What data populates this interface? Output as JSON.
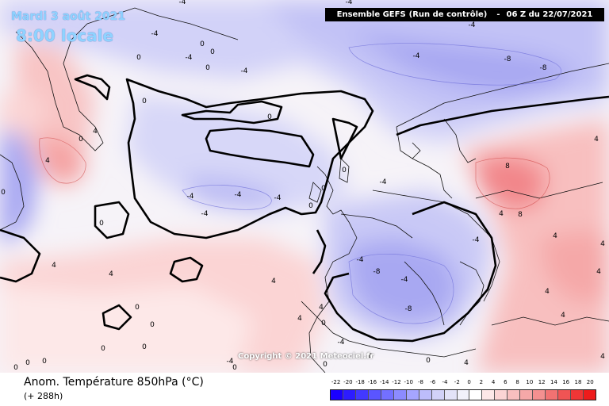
{
  "header": {
    "date": "Mardi 3 août 2021",
    "local_time": "8:00 locale"
  },
  "run_info": {
    "model": "Ensemble GEFS",
    "description": "(Run de contrôle)",
    "run_time": "06 Z du 22/07/2021"
  },
  "copyright": "Copyright © 2021 Meteociel.fr",
  "footer": {
    "title": "Anom. Température 850hPa (°C)",
    "forecast_hour": "(+ 288h)"
  },
  "legend": {
    "labels": [
      "-22",
      "-20",
      "-18",
      "-16",
      "-14",
      "-12",
      "-10",
      "-8",
      "-6",
      "-4",
      "-2",
      "0",
      "2",
      "4",
      "6",
      "8",
      "10",
      "12",
      "14",
      "16",
      "18",
      "20"
    ],
    "colors": [
      "#1a00ff",
      "#2d1cff",
      "#4239ff",
      "#5a55ff",
      "#7370ff",
      "#8c8bff",
      "#a5a5ff",
      "#bdbdfb",
      "#d2d2f8",
      "#e3e3f8",
      "#f2f2fb",
      "#ffffff",
      "#fde8e8",
      "#fbd4d4",
      "#f8bfbf",
      "#f5a8a8",
      "#f49090",
      "#f27272",
      "#f05454",
      "#ef3636",
      "#ee1c1c"
    ]
  },
  "map_labels": [
    {
      "text": "-4"
    },
    {
      "text": "-4"
    },
    {
      "text": "0"
    },
    {
      "text": "0"
    },
    {
      "text": "-4"
    },
    {
      "text": "0"
    },
    {
      "text": "-4"
    },
    {
      "text": "-4"
    },
    {
      "text": "-8"
    },
    {
      "text": "-8"
    },
    {
      "text": "-4"
    },
    {
      "text": "-4"
    },
    {
      "text": "0"
    },
    {
      "text": "4"
    },
    {
      "text": "0"
    },
    {
      "text": "4"
    },
    {
      "text": "-4"
    },
    {
      "text": "-4"
    },
    {
      "text": "-4"
    },
    {
      "text": "-4"
    },
    {
      "text": "0"
    },
    {
      "text": "0"
    },
    {
      "text": "0"
    },
    {
      "text": "0"
    },
    {
      "text": "-4"
    },
    {
      "text": "0"
    },
    {
      "text": "4"
    },
    {
      "text": "0"
    },
    {
      "text": "0"
    },
    {
      "text": "-4"
    },
    {
      "text": "4"
    },
    {
      "text": "8"
    },
    {
      "text": "8"
    },
    {
      "text": "4"
    },
    {
      "text": "4"
    },
    {
      "text": "4"
    },
    {
      "text": "0"
    },
    {
      "text": "0"
    },
    {
      "text": "0"
    },
    {
      "text": "4"
    },
    {
      "text": "-8"
    },
    {
      "text": "-4"
    },
    {
      "text": "-8"
    },
    {
      "text": "-4"
    },
    {
      "text": "-4"
    },
    {
      "text": "0"
    },
    {
      "text": "4"
    },
    {
      "text": "4"
    },
    {
      "text": "0"
    },
    {
      "text": "4"
    },
    {
      "text": "0"
    },
    {
      "text": "4"
    },
    {
      "text": "0"
    },
    {
      "text": "0"
    },
    {
      "text": "0"
    },
    {
      "text": "0"
    },
    {
      "text": "0"
    },
    {
      "text": "-4"
    },
    {
      "text": "4"
    },
    {
      "text": "4"
    },
    {
      "text": "4"
    },
    {
      "text": "4"
    },
    {
      "text": "4"
    }
  ]
}
